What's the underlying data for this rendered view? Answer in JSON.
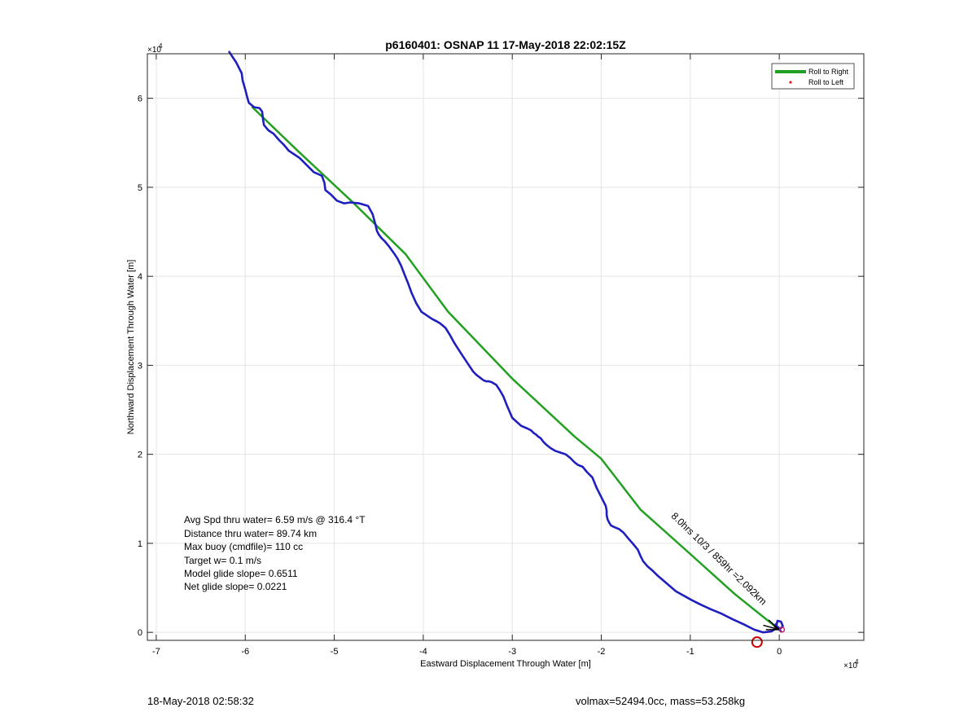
{
  "chart_data": {
    "type": "line",
    "title": "p6160401: OSNAP 11 17-May-2018 22:02:15Z",
    "xlabel": "Eastward Displacement Through Water [m]",
    "ylabel": "Northward Displacement Through Water [m]",
    "x_exponent_label": "×10",
    "x_exponent_power": "4",
    "y_exponent_label": "×10",
    "y_exponent_power": "4",
    "xlim": [
      -71000,
      9500
    ],
    "ylim": [
      -900,
      65000
    ],
    "xticks": [
      -70000,
      -60000,
      -50000,
      -40000,
      -30000,
      -20000,
      -10000,
      0
    ],
    "xtick_labels": [
      "-7",
      "-6",
      "-5",
      "-4",
      "-3",
      "-2",
      "-1",
      "0"
    ],
    "yticks": [
      0,
      10000,
      20000,
      30000,
      40000,
      50000,
      60000
    ],
    "ytick_labels": [
      "0",
      "1",
      "2",
      "3",
      "4",
      "5",
      "6"
    ],
    "grid": true,
    "legend": {
      "placement": "top-right",
      "entries": [
        {
          "name": "Roll to Right",
          "color": "#22a022",
          "style": "line"
        },
        {
          "name": "Roll to Left",
          "color": "#e02020",
          "style": "dot"
        }
      ]
    },
    "series": [
      {
        "color": "#22a022",
        "x": [
          -59200,
          -54000,
          -48000,
          -42000,
          -37200,
          -30000,
          -23000,
          -20000,
          -15600,
          -10000,
          -5000,
          0
        ],
        "y": [
          59000,
          54000,
          48400,
          42500,
          36000,
          28500,
          22000,
          19500,
          13800,
          8800,
          4300,
          300
        ]
      },
      {
        "color": "#1f1fbf",
        "x": [
          -61800,
          -61000,
          -60700,
          -60400,
          -60300,
          -60000,
          -59800,
          -59600,
          -59000,
          -58400,
          -58100,
          -58000,
          -57900,
          -57400,
          -56800,
          -56200,
          -55700,
          -55100,
          -54500,
          -53900,
          -53400,
          -53000,
          -52300,
          -51400,
          -51100,
          -51000,
          -50400,
          -49700,
          -48900,
          -48200,
          -47200,
          -46200,
          -45700,
          -45400,
          -45200,
          -45000,
          -44700,
          -44300,
          -43800,
          -43300,
          -42900,
          -42500,
          -42100,
          -41700,
          -41300,
          -40800,
          -40200,
          -39600,
          -39300,
          -39000,
          -38600,
          -38100,
          -37500,
          -37000,
          -36500,
          -35800,
          -35000,
          -34400,
          -34000,
          -33600,
          -33200,
          -32900,
          -32600,
          -32300,
          -31800,
          -31400,
          -31000,
          -30600,
          -30000,
          -29000,
          -28300,
          -27900,
          -27600,
          -27300,
          -27100,
          -26800,
          -26500,
          -26200,
          -25700,
          -25200,
          -24600,
          -24000,
          -23500,
          -23000,
          -22600,
          -22100,
          -21600,
          -21000,
          -20500,
          -19900,
          -19500,
          -19400,
          -19400,
          -19300,
          -19100,
          -18900,
          -18500,
          -18000,
          -17500,
          -17000,
          -16400,
          -15900,
          -15600,
          -15300,
          -14800,
          -14200,
          -13600,
          -13000,
          -12300,
          -11600,
          -10700,
          -9800,
          -8800,
          -7700,
          -6500,
          -5300,
          -4000,
          -2800,
          -1800,
          -900,
          -400,
          -300,
          -200,
          200,
          400,
          100,
          -200,
          -400,
          -200,
          100,
          200
        ],
        "y": [
          65200,
          64000,
          63400,
          62800,
          62000,
          61000,
          60200,
          59500,
          59000,
          58900,
          58500,
          57600,
          57000,
          56400,
          56000,
          55300,
          54800,
          54100,
          53700,
          53300,
          52800,
          52400,
          51700,
          51300,
          50500,
          49700,
          49200,
          48500,
          48200,
          48300,
          48200,
          47900,
          47000,
          45900,
          45100,
          44700,
          44300,
          43900,
          43300,
          42600,
          42000,
          41200,
          40200,
          39200,
          38100,
          37000,
          36000,
          35600,
          35400,
          35200,
          35000,
          34700,
          34200,
          33400,
          32500,
          31400,
          30200,
          29300,
          28900,
          28600,
          28300,
          28200,
          28200,
          28100,
          27800,
          27200,
          26500,
          25500,
          24100,
          23200,
          22900,
          22700,
          22400,
          22200,
          22000,
          21800,
          21400,
          21100,
          20700,
          20400,
          20200,
          20000,
          19600,
          19100,
          18800,
          18600,
          18000,
          17400,
          16200,
          15000,
          14200,
          13700,
          13200,
          12700,
          12300,
          12000,
          11800,
          11600,
          11200,
          10600,
          9900,
          9300,
          8600,
          8000,
          7400,
          6900,
          6300,
          5800,
          5200,
          4600,
          4100,
          3600,
          3100,
          2600,
          2100,
          1500,
          900,
          300,
          0,
          100,
          400,
          900,
          1300,
          1200,
          700,
          400,
          600,
          900,
          500,
          200,
          100
        ]
      }
    ],
    "annotation": {
      "text": "8.0hrs 10/3 / 859hr =2.092km",
      "x": -12200,
      "y": 13000,
      "rotation_deg": 44
    },
    "end_marker": {
      "x": -2500,
      "y": -1100,
      "color": "#cc0000"
    },
    "stats": [
      "Avg Spd thru water=  6.59 m/s @ 316.4 °T",
      "Distance thru water= 89.74 km",
      "Max buoy (cmdfile)= 110 cc",
      "Target w= 0.1 m/s",
      "Model glide slope= 0.6511",
      "Net glide slope= 0.0221"
    ]
  },
  "footer": {
    "date": "18-May-2018 02:58:32",
    "vol_mass": "volmax=52494.0cc, mass=53.258kg"
  }
}
